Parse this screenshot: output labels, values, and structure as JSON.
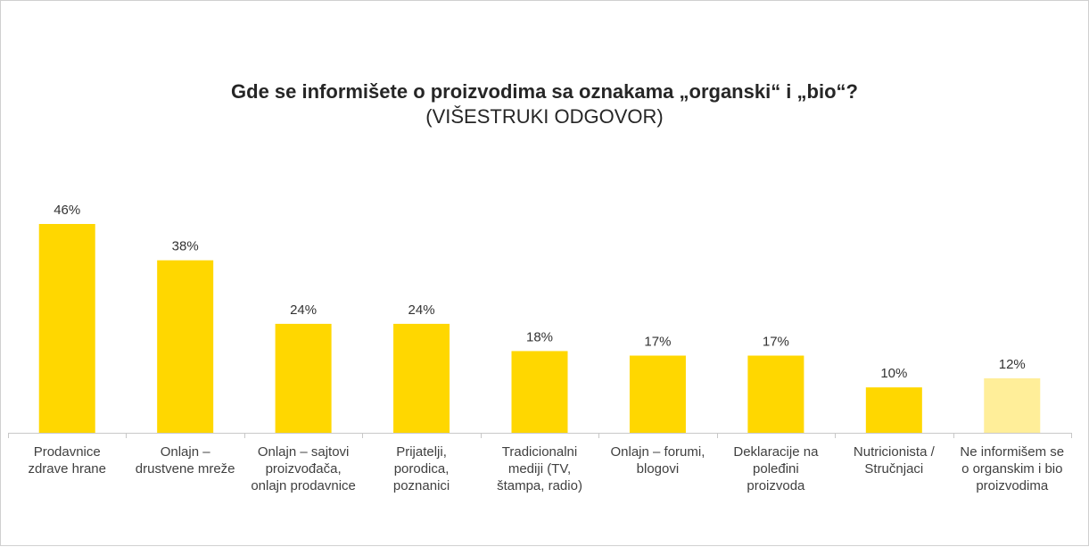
{
  "chart_data": {
    "type": "bar",
    "title": "Gde se informišete o proizvodima sa oznakama „organski“ i „bio“?",
    "subtitle": "(VIŠESTRUKI ODGOVOR)",
    "categories": [
      [
        "Prodavnice",
        "zdrave hrane"
      ],
      [
        "Onlajn –",
        "drustvene mreže"
      ],
      [
        "Onlajn – sajtovi",
        "proizvođača,",
        "onlajn prodavnice"
      ],
      [
        "Prijatelji,",
        "porodica,",
        "poznanici"
      ],
      [
        "Tradicionalni",
        "mediji (TV,",
        "štampa, radio)"
      ],
      [
        "Onlajn – forumi,",
        "blogovi"
      ],
      [
        "Deklaracije na",
        "poleđini",
        "proizvoda"
      ],
      [
        "Nutricionista /",
        "Stručnjaci"
      ],
      [
        "Ne informišem se",
        "o organskim i bio",
        "proizvodima"
      ]
    ],
    "values": [
      46,
      38,
      24,
      24,
      18,
      17,
      17,
      10,
      12
    ],
    "data_labels": [
      "46%",
      "38%",
      "24%",
      "24%",
      "18%",
      "17%",
      "17%",
      "10%",
      "12%"
    ],
    "bar_colors": [
      "#FFD700",
      "#FFD700",
      "#FFD700",
      "#FFD700",
      "#FFD700",
      "#FFD700",
      "#FFD700",
      "#FFD700",
      "#FFEE99"
    ],
    "ylim": [
      0,
      50
    ],
    "grid": false,
    "legend": "none"
  }
}
